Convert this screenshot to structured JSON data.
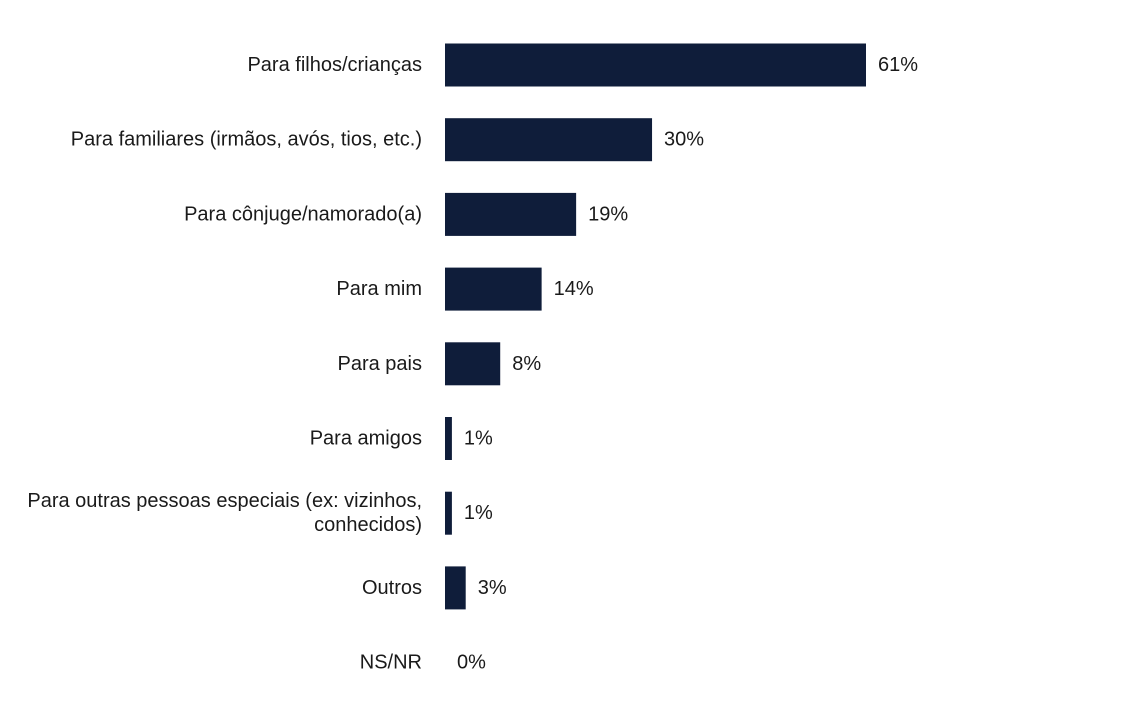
{
  "chart_data": {
    "type": "bar",
    "orientation": "horizontal",
    "categories": [
      "Para filhos/crianças",
      "Para familiares (irmãos, avós, tios, etc.)",
      "Para cônjuge/namorado(a)",
      "Para mim",
      "Para pais",
      "Para amigos",
      "Para outras pessoas especiais (ex: vizinhos, conhecidos)",
      "Outros",
      "NS/NR"
    ],
    "values": [
      61,
      30,
      19,
      14,
      8,
      1,
      1,
      3,
      0
    ],
    "value_labels": [
      "61%",
      "30%",
      "19%",
      "14%",
      "8%",
      "1%",
      "1%",
      "3%",
      "0%"
    ],
    "value_unit": "%",
    "bar_color": "#0f1d3a",
    "xlim": [
      0,
      61
    ],
    "grid": false,
    "legend": "none"
  }
}
